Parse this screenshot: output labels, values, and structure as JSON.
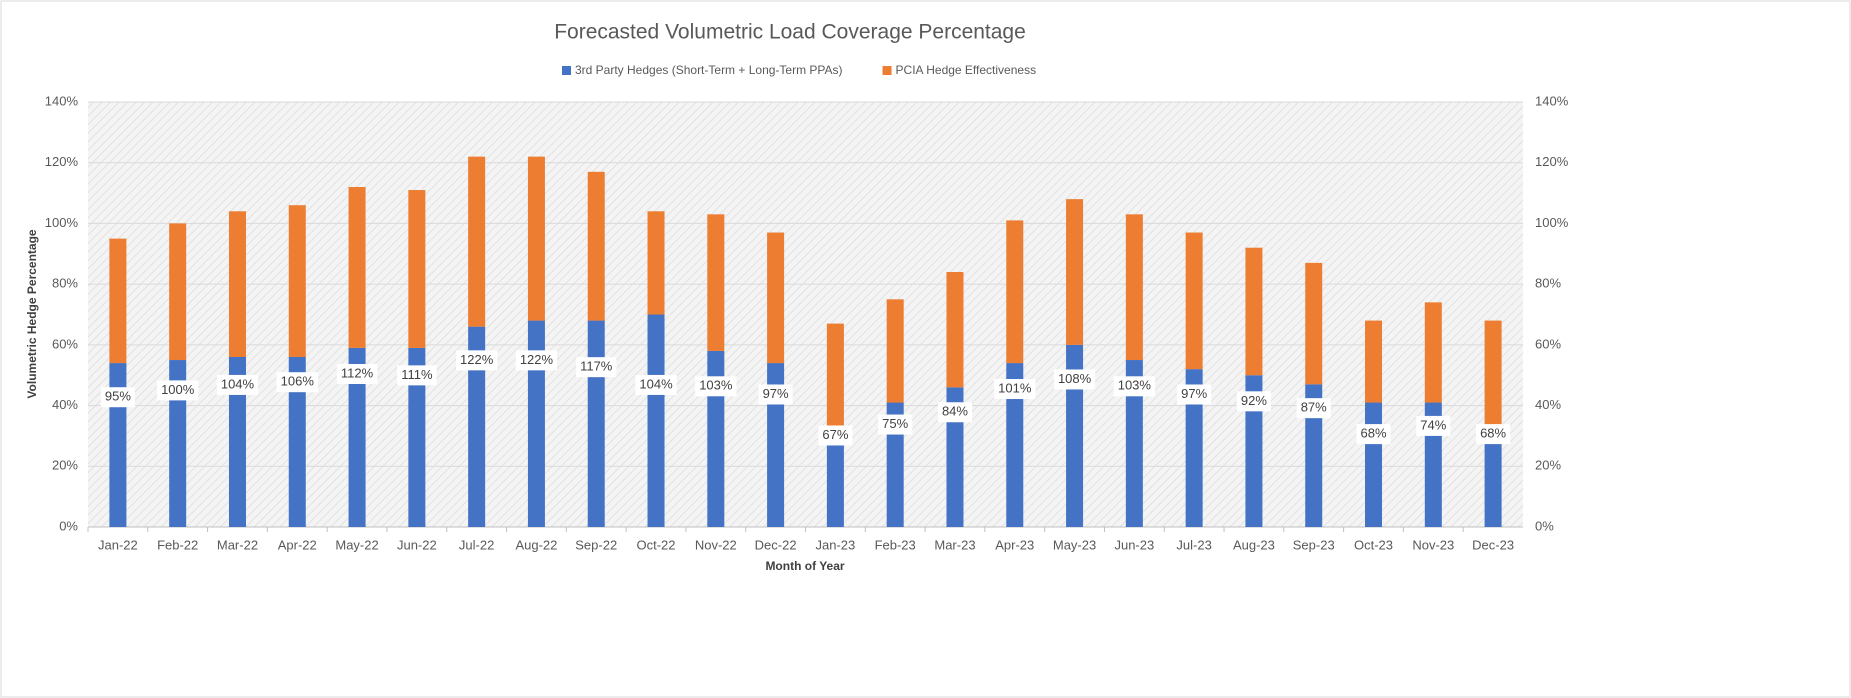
{
  "chart_data": {
    "type": "stacked_bar",
    "title": "Forecasted Volumetric Load Coverage Percentage",
    "x_label": "Month of Year",
    "y_label": "Volumetric Hedge Percentage",
    "categories": [
      "Jan-22",
      "Feb-22",
      "Mar-22",
      "Apr-22",
      "May-22",
      "Jun-22",
      "Jul-22",
      "Aug-22",
      "Sep-22",
      "Oct-22",
      "Nov-22",
      "Dec-22",
      "Jan-23",
      "Feb-23",
      "Mar-23",
      "Apr-23",
      "May-23",
      "Jun-23",
      "Jul-23",
      "Aug-23",
      "Sep-23",
      "Oct-23",
      "Nov-23",
      "Dec-23"
    ],
    "series": [
      {
        "name": "3rd Party Hedges (Short-Term + Long-Term PPAs)",
        "color": "#4472c4",
        "values": [
          54,
          55,
          56,
          56,
          59,
          59,
          66,
          68,
          68,
          70,
          58,
          54,
          30,
          41,
          46,
          54,
          60,
          55,
          52,
          50,
          47,
          41,
          41,
          30
        ]
      },
      {
        "name": "PCIA Hedge Effectiveness",
        "color": "#ed7d31",
        "values": [
          41,
          45,
          48,
          50,
          53,
          52,
          56,
          54,
          49,
          34,
          45,
          43,
          37,
          34,
          38,
          47,
          48,
          48,
          45,
          42,
          40,
          27,
          33,
          38
        ]
      }
    ],
    "total_labels": [
      "95%",
      "100%",
      "104%",
      "106%",
      "112%",
      "111%",
      "122%",
      "122%",
      "117%",
      "104%",
      "103%",
      "97%",
      "67%",
      "75%",
      "84%",
      "101%",
      "108%",
      "103%",
      "97%",
      "92%",
      "87%",
      "68%",
      "74%",
      "68%"
    ],
    "ylim": [
      0,
      140
    ],
    "yticks": [
      {
        "value": 0,
        "label": "0%"
      },
      {
        "value": 20,
        "label": "20%"
      },
      {
        "value": 40,
        "label": "40%"
      },
      {
        "value": 60,
        "label": "60%"
      },
      {
        "value": 80,
        "label": "80%"
      },
      {
        "value": 100,
        "label": "100%"
      },
      {
        "value": 120,
        "label": "120%"
      },
      {
        "value": 140,
        "label": "140%"
      }
    ],
    "grid": true,
    "legend": "top"
  }
}
